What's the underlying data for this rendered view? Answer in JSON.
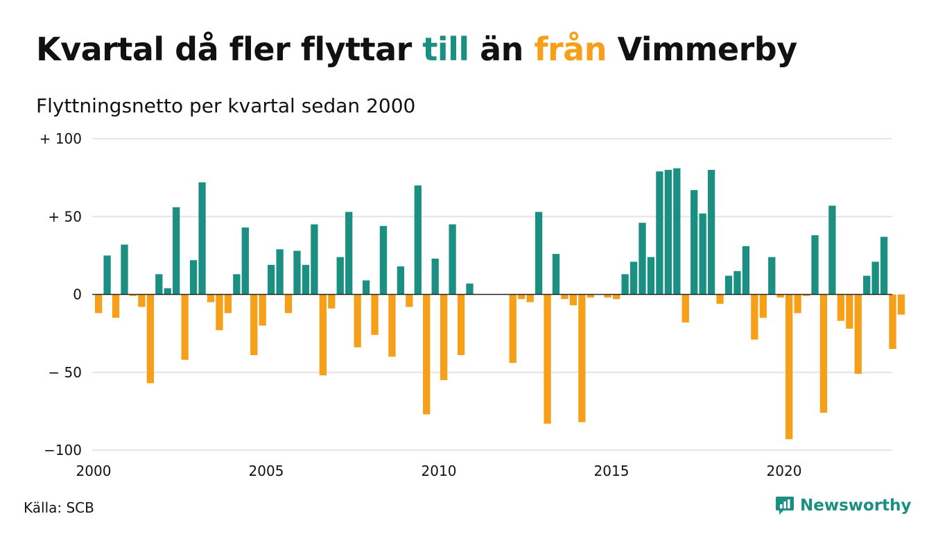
{
  "title": {
    "part1": "Kvartal då fler flyttar ",
    "highlight_in": "till",
    "part2": " än ",
    "highlight_out": "från",
    "part3": " Vimmerby"
  },
  "subtitle": "Flyttningsnetto per kvartal sedan 2000",
  "source": "Källa: SCB",
  "brand": {
    "name": "Newsworthy",
    "icon": "newsworthy-logo-icon"
  },
  "colors": {
    "positive": "#1b8f82",
    "negative": "#f6a01a",
    "grid": "#e4e4e4",
    "zero_line": "#222222",
    "text": "#111111"
  },
  "chart_data": {
    "type": "bar",
    "x_start": "2000",
    "x_interval": "quarter",
    "ylim": [
      -100,
      100
    ],
    "y_ticks": [
      {
        "value": 100,
        "label": "+ 100"
      },
      {
        "value": 50,
        "label": "+  50"
      },
      {
        "value": 0,
        "label": "0"
      },
      {
        "value": -50,
        "label": "− 50"
      },
      {
        "value": -100,
        "label": "−100"
      }
    ],
    "x_ticks": [
      {
        "year": 2000,
        "label": "2000"
      },
      {
        "year": 2005,
        "label": "2005"
      },
      {
        "year": 2010,
        "label": "2010"
      },
      {
        "year": 2015,
        "label": "2015"
      },
      {
        "year": 2020,
        "label": "2020"
      }
    ],
    "categories": [
      "2000Q1",
      "2000Q2",
      "2000Q3",
      "2000Q4",
      "2001Q1",
      "2001Q2",
      "2001Q3",
      "2001Q4",
      "2002Q1",
      "2002Q2",
      "2002Q3",
      "2002Q4",
      "2003Q1",
      "2003Q2",
      "2003Q3",
      "2003Q4",
      "2004Q1",
      "2004Q2",
      "2004Q3",
      "2004Q4",
      "2005Q1",
      "2005Q2",
      "2005Q3",
      "2005Q4",
      "2006Q1",
      "2006Q2",
      "2006Q3",
      "2006Q4",
      "2007Q1",
      "2007Q2",
      "2007Q3",
      "2007Q4",
      "2008Q1",
      "2008Q2",
      "2008Q3",
      "2008Q4",
      "2009Q1",
      "2009Q2",
      "2009Q3",
      "2009Q4",
      "2010Q1",
      "2010Q2",
      "2010Q3",
      "2010Q4",
      "2011Q1",
      "2011Q2",
      "2011Q3",
      "2011Q4",
      "2012Q1",
      "2012Q2",
      "2012Q3",
      "2012Q4",
      "2013Q1",
      "2013Q2",
      "2013Q3",
      "2013Q4",
      "2014Q1",
      "2014Q2",
      "2014Q3",
      "2014Q4",
      "2015Q1",
      "2015Q2",
      "2015Q3",
      "2015Q4",
      "2016Q1",
      "2016Q2",
      "2016Q3",
      "2016Q4",
      "2017Q1",
      "2017Q2",
      "2017Q3",
      "2017Q4",
      "2018Q1",
      "2018Q2",
      "2018Q3",
      "2018Q4",
      "2019Q1",
      "2019Q2",
      "2019Q3",
      "2019Q4",
      "2020Q1",
      "2020Q2",
      "2020Q3",
      "2020Q4",
      "2021Q1",
      "2021Q2",
      "2021Q3",
      "2021Q4",
      "2022Q1",
      "2022Q2",
      "2022Q3",
      "2022Q4",
      "2023Q1",
      "2023Q2"
    ],
    "values": [
      -12,
      25,
      -15,
      32,
      -1,
      -8,
      -57,
      13,
      4,
      56,
      -42,
      22,
      72,
      -5,
      -23,
      -12,
      13,
      43,
      -39,
      -20,
      19,
      29,
      -12,
      28,
      19,
      45,
      -52,
      -9,
      24,
      53,
      -34,
      9,
      -26,
      44,
      -40,
      18,
      -8,
      70,
      -77,
      23,
      -55,
      45,
      -39,
      7,
      0,
      0,
      0,
      0,
      -44,
      -3,
      -5,
      53,
      -83,
      26,
      -3,
      -7,
      -82,
      -2,
      0,
      -2,
      -3,
      13,
      21,
      46,
      24,
      79,
      80,
      81,
      -18,
      67,
      52,
      80,
      -6,
      12,
      15,
      31,
      -29,
      -15,
      24,
      -2,
      -93,
      -12,
      -1,
      38,
      -76,
      57,
      -17,
      -22,
      -51,
      12,
      21,
      37,
      -35,
      -13
    ]
  }
}
